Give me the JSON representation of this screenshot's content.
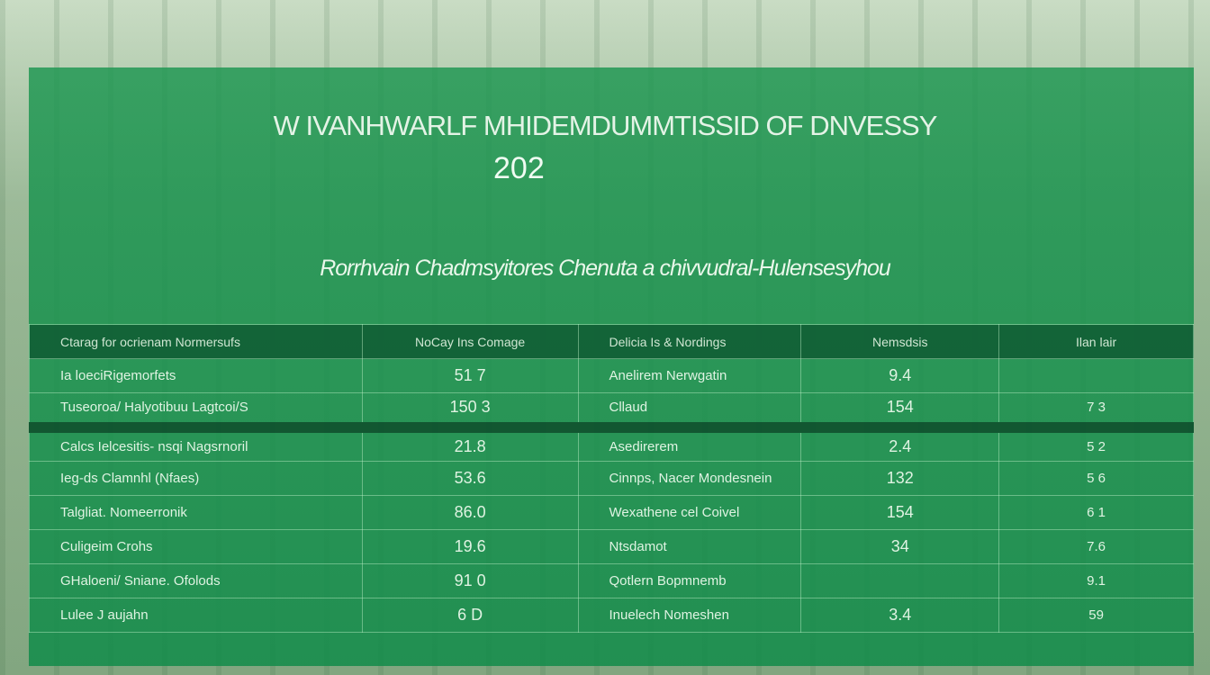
{
  "title": "W IVANHWARLF MHIDEMDUMMTISSID OF    DNVESSY",
  "year": "202",
  "subtitle": "Rorrhvain  Chadmsyitores Chenuta a chivvudral-Hulensesyhou",
  "table": {
    "headers": [
      "Ctarag  for ocrienam  Normersufs",
      "NoCay Ins Comage",
      "Delicia Is & Nordings",
      "Nemsdsis",
      "Ilan lair"
    ],
    "rows": [
      [
        "Ia loeciRigemorfets",
        "51 7",
        "Anelirem  Nerwgatin",
        "9.4",
        ""
      ],
      [
        "Tuseoroa/  Halyotibuu  Lagtcoi/S",
        "150 3",
        "Cllaud",
        "154",
        "7 3"
      ],
      [
        "Calcs  Ielcesitis-  nsqi  Nagsrnoril",
        "21.8",
        "Asedirerem",
        "2.4",
        "5 2"
      ],
      [
        "Ieg-ds   Clamnhl (Nfaes)",
        "53.6",
        "Cinnps,  Nacer  Mondesnein",
        "132",
        "5 6"
      ],
      [
        "Talgliat.  Nomeerronik",
        "86.0",
        "Wexathene cel  Coivel",
        "154",
        "6 1"
      ],
      [
        "Culigeim  Crohs",
        "19.6",
        "Ntsdamot",
        "34",
        "7.6"
      ],
      [
        "GHaloeni/  Sniane.  Ofolods",
        "91 0",
        "Qotlern  Bopmnemb",
        "",
        "9.1"
      ],
      [
        "Lulee  J  aujahn",
        "6 D",
        "Inuelech  Nomeshen",
        "3.4",
        "59"
      ]
    ]
  },
  "colors": {
    "panel": "#1c9650",
    "header": "#0f5a32",
    "text": "#dff3e2"
  }
}
